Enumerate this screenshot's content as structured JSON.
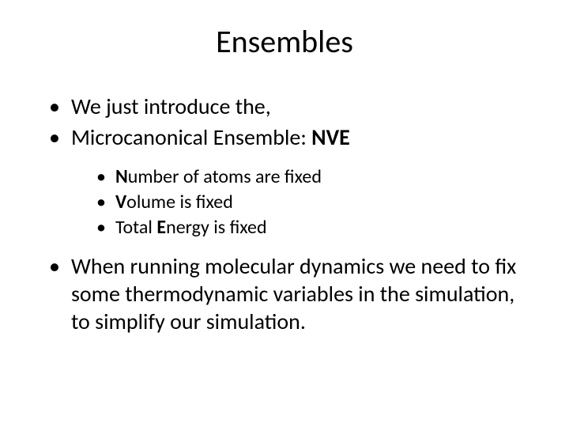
{
  "title": "Ensembles",
  "bullets": {
    "b1": "We just introduce the,",
    "b2_pre": "Microcanonical Ensemble: ",
    "b2_bold": "NVE",
    "sub1_b": "N",
    "sub1_r": "umber of atoms are fixed",
    "sub2_b": "V",
    "sub2_r": "olume is fixed",
    "sub3_pre": "Total ",
    "sub3_b": "E",
    "sub3_r": "nergy is fixed",
    "b3": "When running molecular dynamics we need to fix some thermodynamic variables in the simulation, to simplify our simulation."
  },
  "style": {
    "bg": "#ffffff",
    "text": "#000000",
    "title_fontsize": 40,
    "l1_fontsize": 28,
    "l2_fontsize": 24,
    "bullet_char": "•"
  }
}
